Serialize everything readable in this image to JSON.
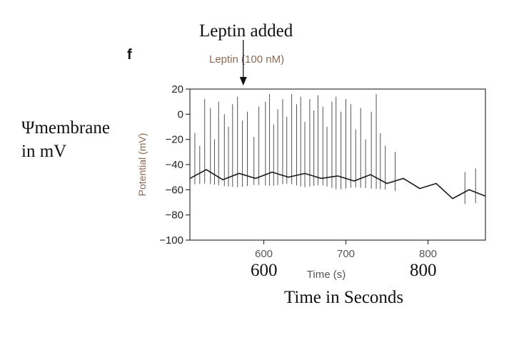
{
  "panel_letter": "f",
  "annotations": {
    "top": "Leptin added",
    "left_line1": "Ψmembrane",
    "left_line2": "in mV",
    "x600": "600",
    "x800": "800",
    "bottom": "Time in Seconds"
  },
  "chart_data": {
    "type": "line",
    "title": "",
    "xlabel": "Time (s)",
    "ylabel": "Potential (mV)",
    "xlim": [
      510,
      870
    ],
    "ylim": [
      -100,
      20
    ],
    "x_ticks": [
      600,
      700,
      800
    ],
    "y_ticks": [
      20,
      0,
      -20,
      -40,
      -60,
      -80,
      -100
    ],
    "event": {
      "label": "Leptin (100 nM)",
      "x": 575
    },
    "grid": false,
    "colors": {
      "trace": "#1a1a1a",
      "axis": "#333333",
      "label": "#8a6a55"
    },
    "series": [
      {
        "x": [
          510,
          530,
          550,
          570,
          590,
          610,
          630,
          650,
          670,
          690,
          710,
          730,
          750,
          770,
          790,
          810,
          830,
          850,
          870
        ],
        "values": [
          -48,
          -47,
          -49,
          -50,
          -48,
          -49,
          -47,
          -50,
          -48,
          -52,
          -50,
          -51,
          -52,
          -54,
          -56,
          -58,
          -64,
          -63,
          -62
        ]
      }
    ],
    "spikes": {
      "x": [
        516,
        522,
        528,
        535,
        540,
        545,
        552,
        557,
        562,
        568,
        574,
        580,
        588,
        594,
        602,
        607,
        612,
        617,
        623,
        628,
        634,
        640,
        645,
        650,
        656,
        661,
        666,
        672,
        677,
        683,
        688,
        694,
        700,
        706,
        712,
        718,
        724,
        731,
        737,
        742,
        748,
        760,
        845,
        858
      ],
      "peak": [
        -15,
        -25,
        12,
        5,
        -20,
        10,
        0,
        -10,
        8,
        14,
        -5,
        2,
        -18,
        6,
        10,
        16,
        -8,
        4,
        12,
        -2,
        16,
        8,
        14,
        -6,
        12,
        3,
        15,
        6,
        -10,
        10,
        14,
        2,
        12,
        8,
        -12,
        5,
        -20,
        2,
        16,
        -15,
        -25,
        -30,
        -46,
        -43
      ]
    }
  }
}
